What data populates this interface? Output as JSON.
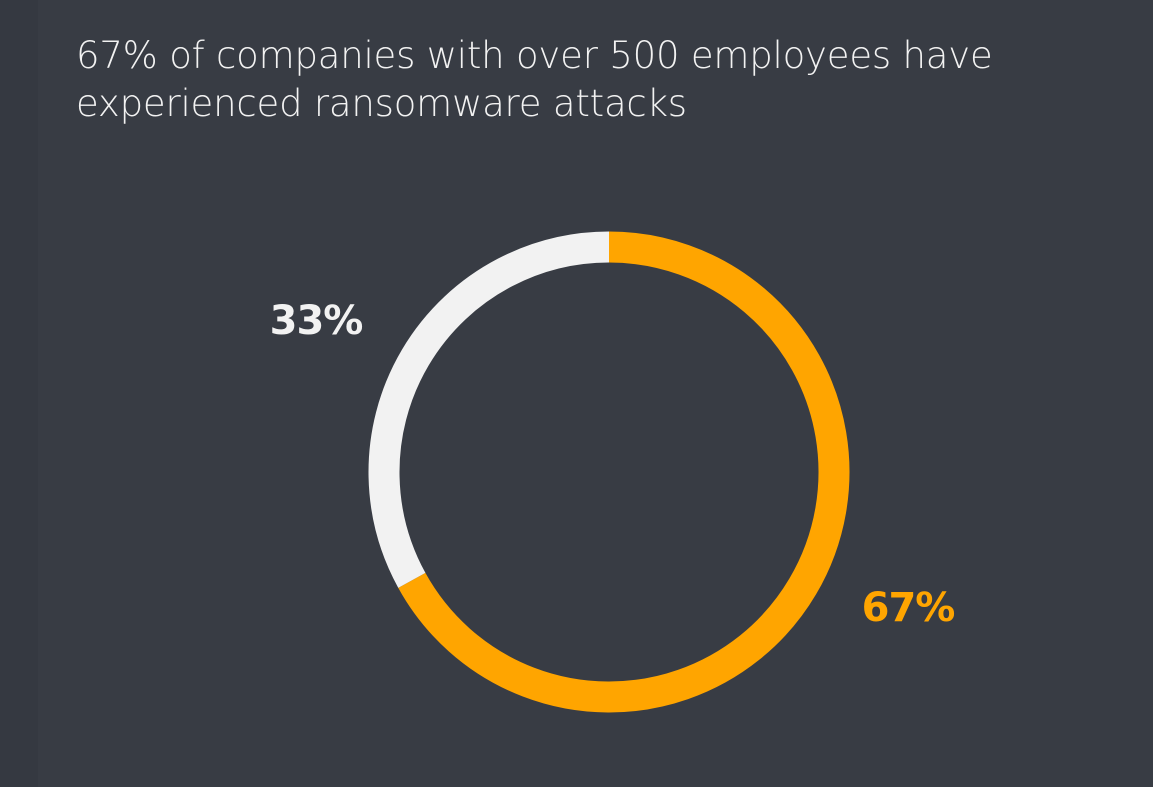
{
  "title_lines": [
    "67% of companies with over 500 employees have",
    "experienced ransomware attacks"
  ],
  "colors": {
    "background": "#383c44",
    "accent": "#ffa500",
    "neutral": "#f2f2f2",
    "text": "#f2f2f2"
  },
  "chart_data": {
    "type": "pie",
    "variant": "donut",
    "title": "67% of companies with over 500 employees have experienced ransomware attacks",
    "slices": [
      {
        "label": "67%",
        "value": 67,
        "color": "#ffa500",
        "label_color": "#ffa500"
      },
      {
        "label": "33%",
        "value": 33,
        "color": "#f2f2f2",
        "label_color": "#f2f2f2"
      }
    ],
    "start_angle_deg": 0,
    "direction": "clockwise",
    "legend": "none"
  }
}
